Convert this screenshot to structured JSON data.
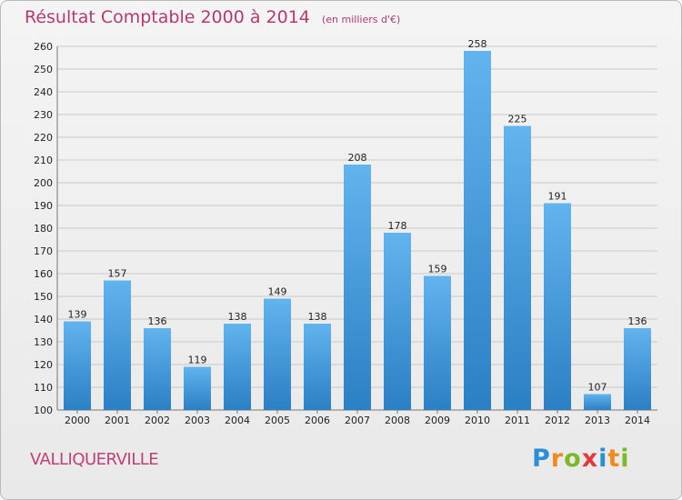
{
  "title": {
    "main": "Résultat Comptable 2000 à 2014",
    "unit": "(en milliers d'€)"
  },
  "town": "VALLIQUERVILLE",
  "logo": {
    "letters": [
      "P",
      "r",
      "o",
      "x",
      "i",
      "t",
      "i"
    ],
    "colors": [
      "#2b8fd8",
      "#f08a1c",
      "#7cb928",
      "#e23a3a",
      "#2b8fd8",
      "#f08a1c",
      "#7cb928"
    ]
  },
  "colors": {
    "bar_light": "#62b4ee",
    "bar_dark": "#2b7fc4",
    "grid": "#c9c9c9"
  },
  "chart_data": {
    "type": "bar",
    "title": "Résultat Comptable 2000 à 2014",
    "subtitle": "(en milliers d'€)",
    "categories": [
      "2000",
      "2001",
      "2002",
      "2003",
      "2004",
      "2005",
      "2006",
      "2007",
      "2008",
      "2009",
      "2010",
      "2011",
      "2012",
      "2013",
      "2014"
    ],
    "values": [
      139,
      157,
      136,
      119,
      138,
      149,
      138,
      208,
      178,
      159,
      258,
      225,
      191,
      107,
      136
    ],
    "ylim": [
      100,
      260
    ],
    "yticks": [
      100,
      110,
      120,
      130,
      140,
      150,
      160,
      170,
      180,
      190,
      200,
      210,
      220,
      230,
      240,
      250,
      260
    ],
    "grid": true,
    "data_labels": true
  }
}
